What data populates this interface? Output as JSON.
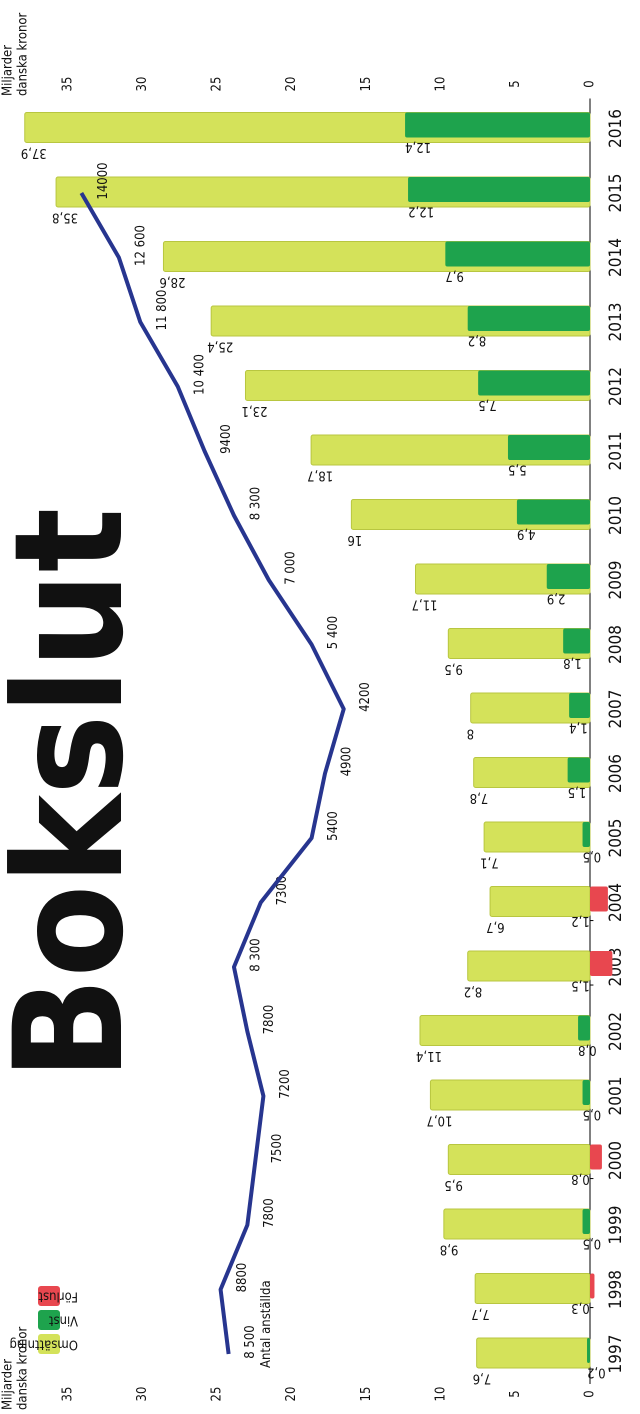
{
  "chart_data": {
    "type": "bar",
    "title": "Bokslut",
    "y_label": [
      "Miljarder",
      "danska kronor"
    ],
    "categories": [
      "1997",
      "1998",
      "1999",
      "2000",
      "2001",
      "2002",
      "2003",
      "2004",
      "2005",
      "2006",
      "2007",
      "2008",
      "2009",
      "2010",
      "2011",
      "2012",
      "2013",
      "2014",
      "2015",
      "2016"
    ],
    "ylim": [
      0,
      35
    ],
    "yticks": [
      0,
      5,
      10,
      15,
      20,
      25,
      30,
      35
    ],
    "y2lim": [
      -5000,
      14500
    ],
    "series": [
      {
        "name": "Omsättning",
        "color": "#d4e25a",
        "values": [
          7.6,
          7.7,
          9.8,
          9.5,
          10.7,
          11.4,
          8.2,
          6.7,
          7.1,
          7.8,
          8,
          9.5,
          11.7,
          16,
          18.7,
          23.1,
          25.4,
          28.6,
          35.8,
          37.9
        ],
        "value_labels": [
          "7,6",
          "7,7",
          "9,8",
          "9,5",
          "10,7",
          "11,4",
          "8,2",
          "6,7",
          "7,1",
          "7,8",
          "8",
          "9,5",
          "11,7",
          "16",
          "18,7",
          "23,1",
          "25,4",
          "28,6",
          "35,8",
          "37,9"
        ]
      },
      {
        "name": "Vinst",
        "color": "#1ea34d",
        "loss_name": "Förlust",
        "loss_color": "#e8474f",
        "values": [
          0.2,
          -0.3,
          0.5,
          -0.8,
          0.5,
          0.8,
          -1.5,
          -1.2,
          0.5,
          1.5,
          1.4,
          1.8,
          2.9,
          4.9,
          5.5,
          7.5,
          8.2,
          9.7,
          12.2,
          12.4
        ],
        "value_labels": [
          "0,2",
          "-0,3",
          "0,5",
          "-0,8",
          "0,5",
          "0,8",
          "-1,5",
          "-1,2",
          "0,5",
          "1,5",
          "1,4",
          "1,8",
          "2,9",
          "4,9",
          "5,5",
          "7,5",
          "8,2",
          "9,7",
          "12,2",
          "12,4"
        ]
      },
      {
        "name": "Antal anställda",
        "color": "#27358f",
        "axis": "y2",
        "values": [
          8500,
          8800,
          7800,
          7500,
          7200,
          7800,
          8300,
          7300,
          5400,
          4900,
          4200,
          5400,
          7000,
          8300,
          9400,
          10400,
          11800,
          12600,
          14000,
          null
        ],
        "value_labels": [
          "8 500",
          "8800",
          "7800",
          "7500",
          "7200",
          "7800",
          "8 300",
          "7300",
          "5400",
          "4900",
          "4200",
          "5 400",
          "7 000",
          "8 300",
          "9400",
          "10 400",
          "11 800",
          "12 600",
          "14000",
          null
        ]
      }
    ]
  }
}
